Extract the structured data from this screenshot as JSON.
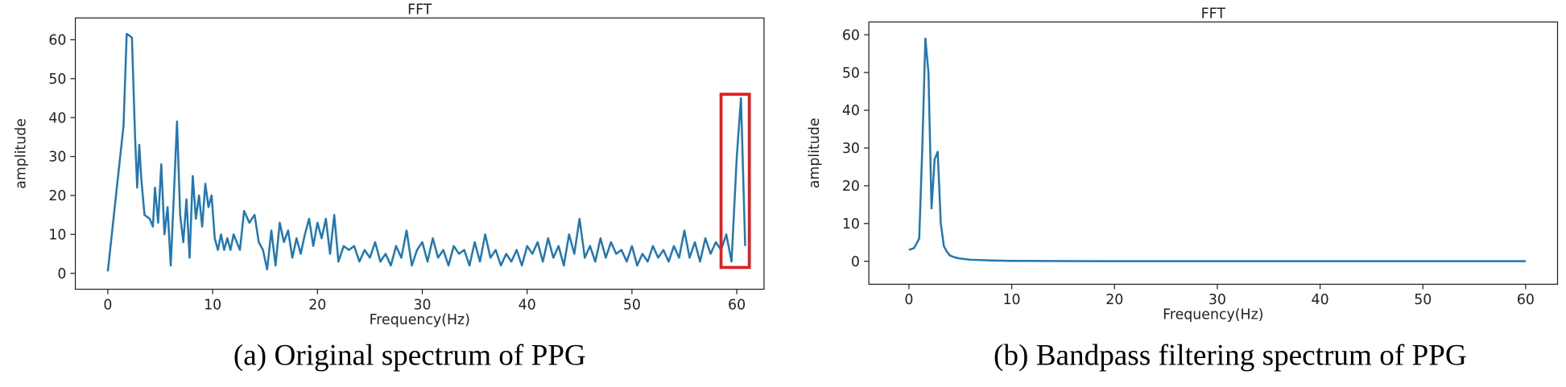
{
  "chart_data": [
    {
      "type": "line",
      "title": "FFT",
      "xlabel": "Frequency(Hz)",
      "ylabel": "amplitude",
      "caption": "(a) Original spectrum of PPG",
      "series": [
        {
          "name": "spectrum",
          "color": "#1f77b4",
          "x": [
            0,
            1.5,
            1.8,
            2.1,
            2.3,
            2.6,
            2.8,
            3,
            3.2,
            3.5,
            4,
            4.3,
            4.5,
            4.8,
            5.1,
            5.4,
            5.7,
            6,
            6.3,
            6.6,
            6.9,
            7.2,
            7.5,
            7.8,
            8.1,
            8.4,
            8.7,
            9,
            9.3,
            9.6,
            9.9,
            10.2,
            10.5,
            10.8,
            11.1,
            11.4,
            11.7,
            12,
            12.6,
            13,
            13.5,
            14,
            14.4,
            14.8,
            15.2,
            15.6,
            16,
            16.4,
            16.8,
            17.2,
            17.6,
            18,
            18.4,
            18.8,
            19.2,
            19.6,
            20,
            20.4,
            20.8,
            21.2,
            21.6,
            22,
            22.5,
            23,
            23.5,
            24,
            24.5,
            25,
            25.5,
            26,
            26.5,
            27,
            27.5,
            28,
            28.5,
            29,
            29.5,
            30,
            30.5,
            31,
            31.5,
            32,
            32.5,
            33,
            33.5,
            34,
            34.5,
            35,
            35.5,
            36,
            36.5,
            37,
            37.5,
            38,
            38.5,
            39,
            39.5,
            40,
            40.5,
            41,
            41.5,
            42,
            42.5,
            43,
            43.5,
            44,
            44.5,
            45,
            45.5,
            46,
            46.5,
            47,
            47.5,
            48,
            48.5,
            49,
            49.5,
            50,
            50.5,
            51,
            51.5,
            52,
            52.5,
            53,
            53.5,
            54,
            54.5,
            55,
            55.5,
            56,
            56.5,
            57,
            57.5,
            58,
            58.5,
            59,
            59.5,
            60,
            60.4,
            60.8
          ],
          "values": [
            0.5,
            38,
            61.5,
            61,
            60.5,
            35,
            22,
            33,
            24,
            15,
            14,
            12,
            22,
            13,
            28,
            10,
            17,
            2,
            20,
            39,
            15,
            8,
            19,
            4,
            25,
            14,
            20,
            12,
            23,
            17,
            20,
            9,
            6,
            10,
            6,
            9,
            6,
            10,
            6,
            16,
            13,
            15,
            8,
            6,
            1,
            11,
            2,
            13,
            8,
            11,
            4,
            9,
            5,
            10,
            14,
            7,
            13,
            9,
            14,
            5,
            15,
            3,
            7,
            6,
            7,
            3,
            6,
            4,
            8,
            3,
            5,
            2,
            7,
            4,
            11,
            2,
            6,
            8,
            3,
            9,
            4,
            6,
            2,
            7,
            5,
            6,
            2,
            8,
            3,
            10,
            4,
            6,
            2,
            5,
            3,
            6,
            2,
            7,
            5,
            8,
            3,
            9,
            4,
            7,
            2,
            10,
            5,
            14,
            4,
            7,
            3,
            9,
            4,
            8,
            5,
            6,
            3,
            7,
            2,
            5,
            3,
            7,
            4,
            6,
            3,
            7,
            4,
            11,
            4,
            8,
            3,
            9,
            5,
            8,
            6,
            10,
            3,
            30,
            45,
            7
          ]
        }
      ],
      "xlim": [
        -3.1,
        62.6
      ],
      "ylim": [
        -4.1,
        65.6
      ],
      "xticks": [
        0,
        10,
        20,
        30,
        40,
        50,
        60
      ],
      "yticks": [
        0,
        10,
        20,
        30,
        40,
        50,
        60
      ],
      "highlight_box": {
        "xlim": [
          58.5,
          61.2
        ],
        "ylim": [
          1.5,
          46
        ],
        "color": "#e02020"
      }
    },
    {
      "type": "line",
      "title": "FFT",
      "xlabel": "Frequency(Hz)",
      "ylabel": "amplitude",
      "caption": "(b) Bandpass filtering spectrum of PPG",
      "series": [
        {
          "name": "spectrum",
          "color": "#1f77b4",
          "x": [
            0,
            0.5,
            1,
            1.3,
            1.6,
            1.9,
            2.2,
            2.5,
            2.8,
            3.1,
            3.4,
            3.7,
            4,
            4.5,
            5,
            6,
            8,
            10,
            15,
            20,
            30,
            40,
            50,
            60
          ],
          "values": [
            3,
            3.5,
            6,
            30,
            59,
            50,
            14,
            27,
            29,
            10,
            4,
            2.5,
            1.5,
            1,
            0.7,
            0.4,
            0.2,
            0.1,
            0.05,
            0.02,
            0.01,
            0.01,
            0.01,
            0.01
          ]
        }
      ],
      "xlim": [
        -3.9,
        63.1
      ],
      "ylim": [
        -6.1,
        63.4
      ],
      "xticks": [
        0,
        10,
        20,
        30,
        40,
        50,
        60
      ],
      "yticks": [
        0,
        10,
        20,
        30,
        40,
        50,
        60
      ]
    }
  ]
}
